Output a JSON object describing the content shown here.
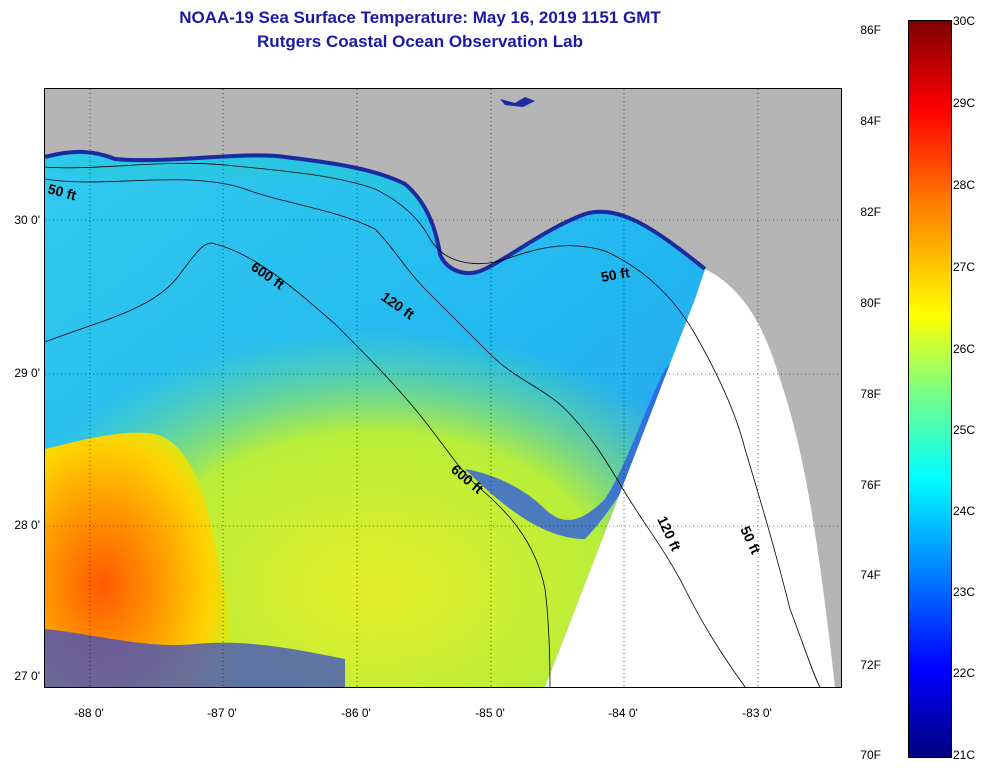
{
  "title": {
    "line1": "NOAA-19 Sea Surface Temperature:  May 16, 2019 1151 GMT",
    "line2": "Rutgers Coastal Ocean Observation Lab"
  },
  "map": {
    "lat_ticks": [
      "30 0'",
      "29 0'",
      "28 0'",
      "27 0'"
    ],
    "lon_ticks": [
      "-88 0'",
      "-87 0'",
      "-86 0'",
      "-85 0'",
      "-84 0'",
      "-83 0'"
    ],
    "contour_labels": [
      "50 ft",
      "600 ft",
      "120 ft",
      "50 ft",
      "600 ft",
      "120 ft",
      "50 ft"
    ],
    "colors": {
      "land": "#b5b5b5",
      "no_data": "#ffffff",
      "contour": "#000000"
    }
  },
  "colorbar": {
    "fahrenheit_labels": [
      "86F",
      "84F",
      "82F",
      "80F",
      "78F",
      "76F",
      "74F",
      "72F",
      "70F"
    ],
    "celsius_labels": [
      "30C",
      "29C",
      "28C",
      "27C",
      "26C",
      "25C",
      "24C",
      "23C",
      "22C",
      "21C"
    ],
    "min_c": 21,
    "max_c": 30,
    "colormap": "jet"
  }
}
